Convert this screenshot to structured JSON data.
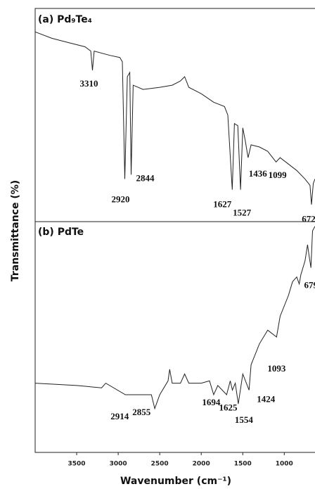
{
  "chart_data": [
    {
      "type": "line",
      "title": "(a) Pd₉Te₄",
      "ylabel": "Transmittance (%)",
      "color": "#222222",
      "x": [
        4000,
        3800,
        3600,
        3400,
        3330,
        3310,
        3290,
        3100,
        2980,
        2950,
        2920,
        2890,
        2860,
        2844,
        2820,
        2700,
        2500,
        2350,
        2250,
        2200,
        2150,
        2000,
        1850,
        1720,
        1700,
        1680,
        1627,
        1600,
        1560,
        1527,
        1500,
        1470,
        1436,
        1400,
        1300,
        1200,
        1099,
        1050,
        950,
        850,
        750,
        690,
        672,
        650,
        630
      ],
      "values": [
        89,
        86,
        84,
        82,
        80,
        71,
        80,
        78,
        77,
        75,
        20,
        68,
        70,
        22,
        64,
        62,
        63,
        64,
        66,
        68,
        63,
        60,
        56,
        54,
        52,
        50,
        15,
        46,
        45,
        15,
        44,
        38,
        30,
        36,
        35,
        33,
        28,
        30,
        27,
        24,
        20,
        17,
        8,
        18,
        20
      ],
      "xlim": [
        4000,
        630
      ],
      "ylim": [
        0,
        100
      ],
      "peaks": [
        3310,
        2920,
        2844,
        1627,
        1527,
        1436,
        1099,
        672
      ]
    },
    {
      "type": "line",
      "title": "(b) PdTe",
      "xlabel": "Wavenumber (cm⁻¹)",
      "color": "#222222",
      "x": [
        4000,
        3500,
        3200,
        3150,
        2914,
        2855,
        2800,
        2600,
        2560,
        2500,
        2400,
        2380,
        2350,
        2250,
        2200,
        2150,
        2000,
        1900,
        1850,
        1800,
        1694,
        1650,
        1625,
        1590,
        1554,
        1500,
        1424,
        1400,
        1300,
        1200,
        1093,
        1050,
        950,
        900,
        850,
        820,
        800,
        750,
        720,
        700,
        679,
        660,
        630
      ],
      "values": [
        30,
        29,
        28,
        30,
        25,
        25,
        25,
        25,
        19,
        25,
        31,
        36,
        30,
        30,
        34,
        30,
        30,
        31,
        25,
        29,
        25,
        31,
        27,
        30,
        21,
        34,
        27,
        38,
        47,
        53,
        50,
        59,
        68,
        74,
        76,
        73,
        77,
        83,
        90,
        85,
        80,
        96,
        98
      ],
      "xlim": [
        4000,
        630
      ],
      "ylim": [
        0,
        100
      ],
      "xticks": [
        3500,
        3000,
        2500,
        2000,
        1500,
        1000
      ],
      "peaks": [
        2914,
        2855,
        1694,
        1625,
        1554,
        1424,
        1093,
        679
      ]
    }
  ]
}
